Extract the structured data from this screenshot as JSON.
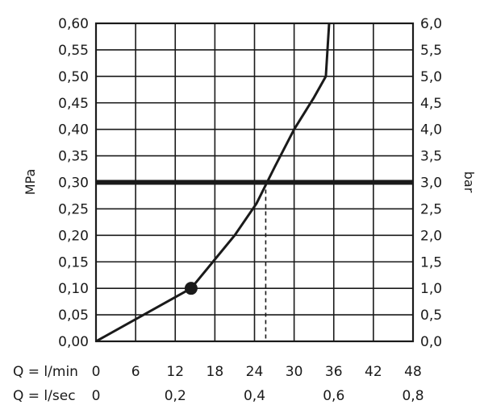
{
  "chart_data": {
    "type": "line",
    "left_axis": {
      "label": "MPa",
      "ticks": [
        "0,00",
        "0,05",
        "0,10",
        "0,15",
        "0,20",
        "0,25",
        "0,30",
        "0,35",
        "0,40",
        "0,45",
        "0,50",
        "0,55",
        "0,60"
      ],
      "range": [
        0,
        0.6
      ]
    },
    "right_axis": {
      "label": "bar",
      "ticks": [
        "0,0",
        "0,5",
        "1,0",
        "1,5",
        "2,0",
        "2,5",
        "3,0",
        "3,5",
        "4,0",
        "4,5",
        "5,0",
        "5,5",
        "6,0"
      ],
      "range": [
        0,
        6
      ]
    },
    "x_axis_lmin": {
      "label": "Q = l/min",
      "ticks": [
        "0",
        "6",
        "12",
        "18",
        "24",
        "30",
        "36",
        "42",
        "48"
      ],
      "range": [
        0,
        48
      ]
    },
    "x_axis_lsec": {
      "label": "Q = l/sec",
      "ticks": [
        "0",
        "0,2",
        "0,4",
        "0,6",
        "0,8"
      ],
      "values": [
        0,
        0.2,
        0.4,
        0.6,
        0.8
      ]
    },
    "series": [
      {
        "x": [
          0,
          14.4,
          17.7,
          21,
          24.3,
          27.1,
          30,
          33,
          34.8,
          35.3
        ],
        "y": [
          0,
          0.1,
          0.15,
          0.2,
          0.26,
          0.33,
          0.4,
          0.46,
          0.5,
          0.6
        ]
      }
    ],
    "marker_point": {
      "x": 14.4,
      "y": 0.1
    },
    "reference_line_y": 0.3,
    "dashed_drop_x": 25.7,
    "grid": true
  }
}
